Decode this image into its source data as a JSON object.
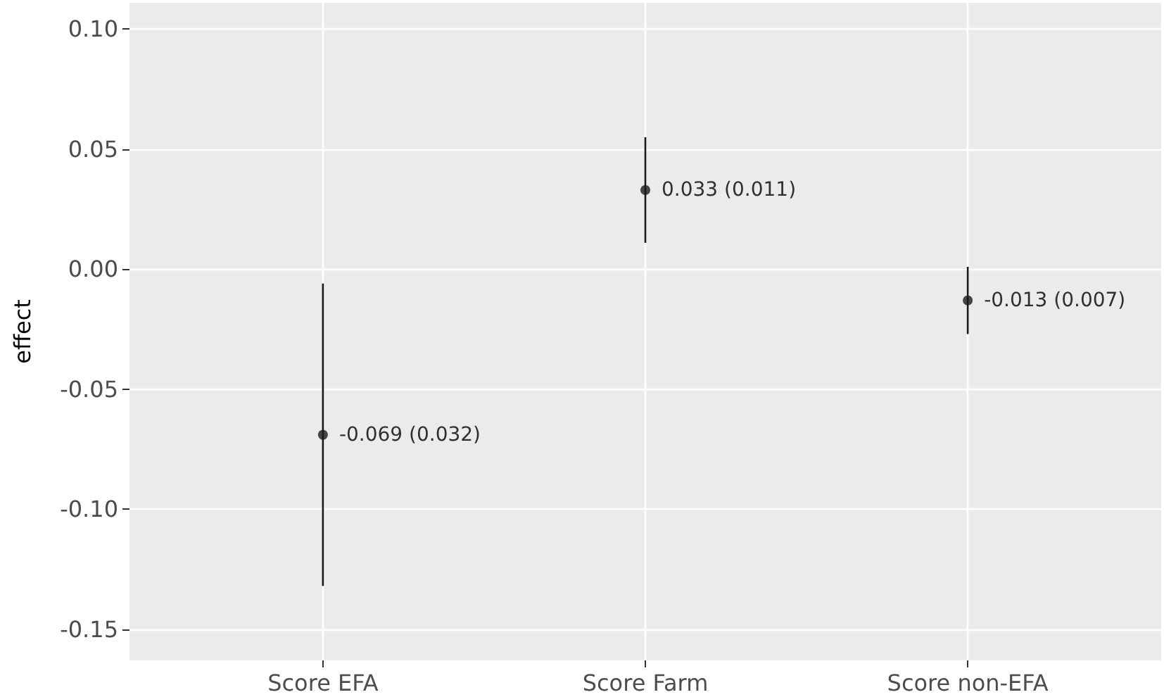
{
  "chart_data": {
    "type": "scatter",
    "ylabel": "effect",
    "categories": [
      "Score EFA",
      "Score Farm",
      "Score non-EFA"
    ],
    "values": [
      -0.069,
      0.033,
      -0.013
    ],
    "errors": [
      0.063,
      0.022,
      0.014
    ],
    "value_labels": [
      "-0.069 (0.032)",
      "0.033 (0.011)",
      "-0.013 (0.007)"
    ],
    "color": "#1a1a1a",
    "marker": "circle",
    "grid": true,
    "ylim": [
      -0.163,
      0.111
    ],
    "yticks": [
      {
        "value": -0.15,
        "label": "-0.15"
      },
      {
        "value": -0.1,
        "label": "-0.10"
      },
      {
        "value": -0.05,
        "label": "-0.05"
      },
      {
        "value": 0,
        "label": "0.00"
      },
      {
        "value": 0.05,
        "label": "0.05"
      },
      {
        "value": 0.1,
        "label": "0.10"
      }
    ]
  }
}
